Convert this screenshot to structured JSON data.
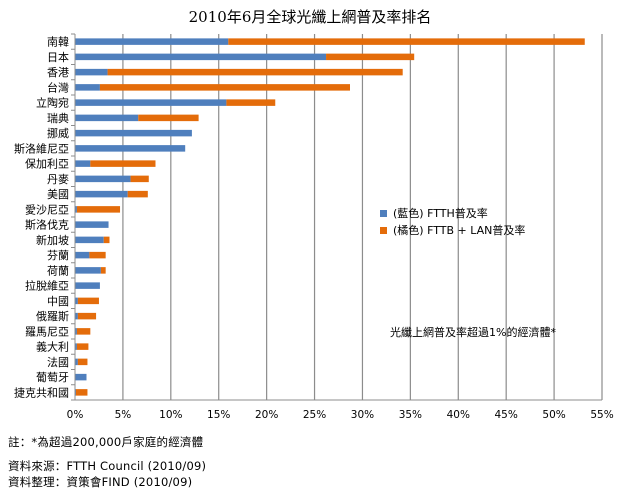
{
  "chart_data": {
    "type": "bar",
    "orientation": "horizontal",
    "stacked": true,
    "title": "2010年6月全球光纖上網普及率排名",
    "categories": [
      "南韓",
      "日本",
      "香港",
      "台灣",
      "立陶宛",
      "瑞典",
      "挪威",
      "斯洛維尼亞",
      "保加利亞",
      "丹麥",
      "美國",
      "愛沙尼亞",
      "斯洛伐克",
      "新加坡",
      "芬蘭",
      "荷蘭",
      "拉脫維亞",
      "中國",
      "俄羅斯",
      "羅馬尼亞",
      "義大利",
      "法國",
      "葡萄牙",
      "捷克共和國"
    ],
    "series": [
      {
        "name": "(藍色) FTTH普及率",
        "color": "#4f7fbd",
        "values": [
          16.0,
          26.2,
          3.4,
          2.6,
          15.8,
          6.6,
          12.2,
          11.5,
          1.6,
          5.8,
          5.5,
          0.2,
          3.5,
          3.0,
          1.5,
          2.7,
          2.6,
          0.3,
          0.3,
          0.2,
          0.2,
          0.3,
          1.2,
          0.1
        ]
      },
      {
        "name": "(橘色) FTTB + LAN普及率",
        "color": "#e46c0a",
        "values": [
          37.2,
          9.2,
          30.8,
          26.1,
          5.1,
          6.3,
          0.0,
          0.0,
          6.8,
          1.9,
          2.1,
          4.5,
          0.0,
          0.6,
          1.7,
          0.5,
          0.0,
          2.2,
          1.9,
          1.4,
          1.2,
          1.0,
          0.0,
          1.2
        ]
      }
    ],
    "xlim": [
      0,
      55
    ],
    "x_ticks": [
      "0%",
      "5%",
      "10%",
      "15%",
      "20%",
      "25%",
      "30%",
      "35%",
      "40%",
      "45%",
      "50%",
      "55%"
    ],
    "grid": true,
    "legend_position": "right-middle",
    "annotation": "光纖上網普及率超過1%的經濟體*"
  },
  "footer": {
    "note": "註：*為超過200,000戶家庭的經濟體",
    "source": "資料來源：FTTH  Council (2010/09)",
    "compiled": "資料整理：資策會FIND (2010/09)"
  }
}
